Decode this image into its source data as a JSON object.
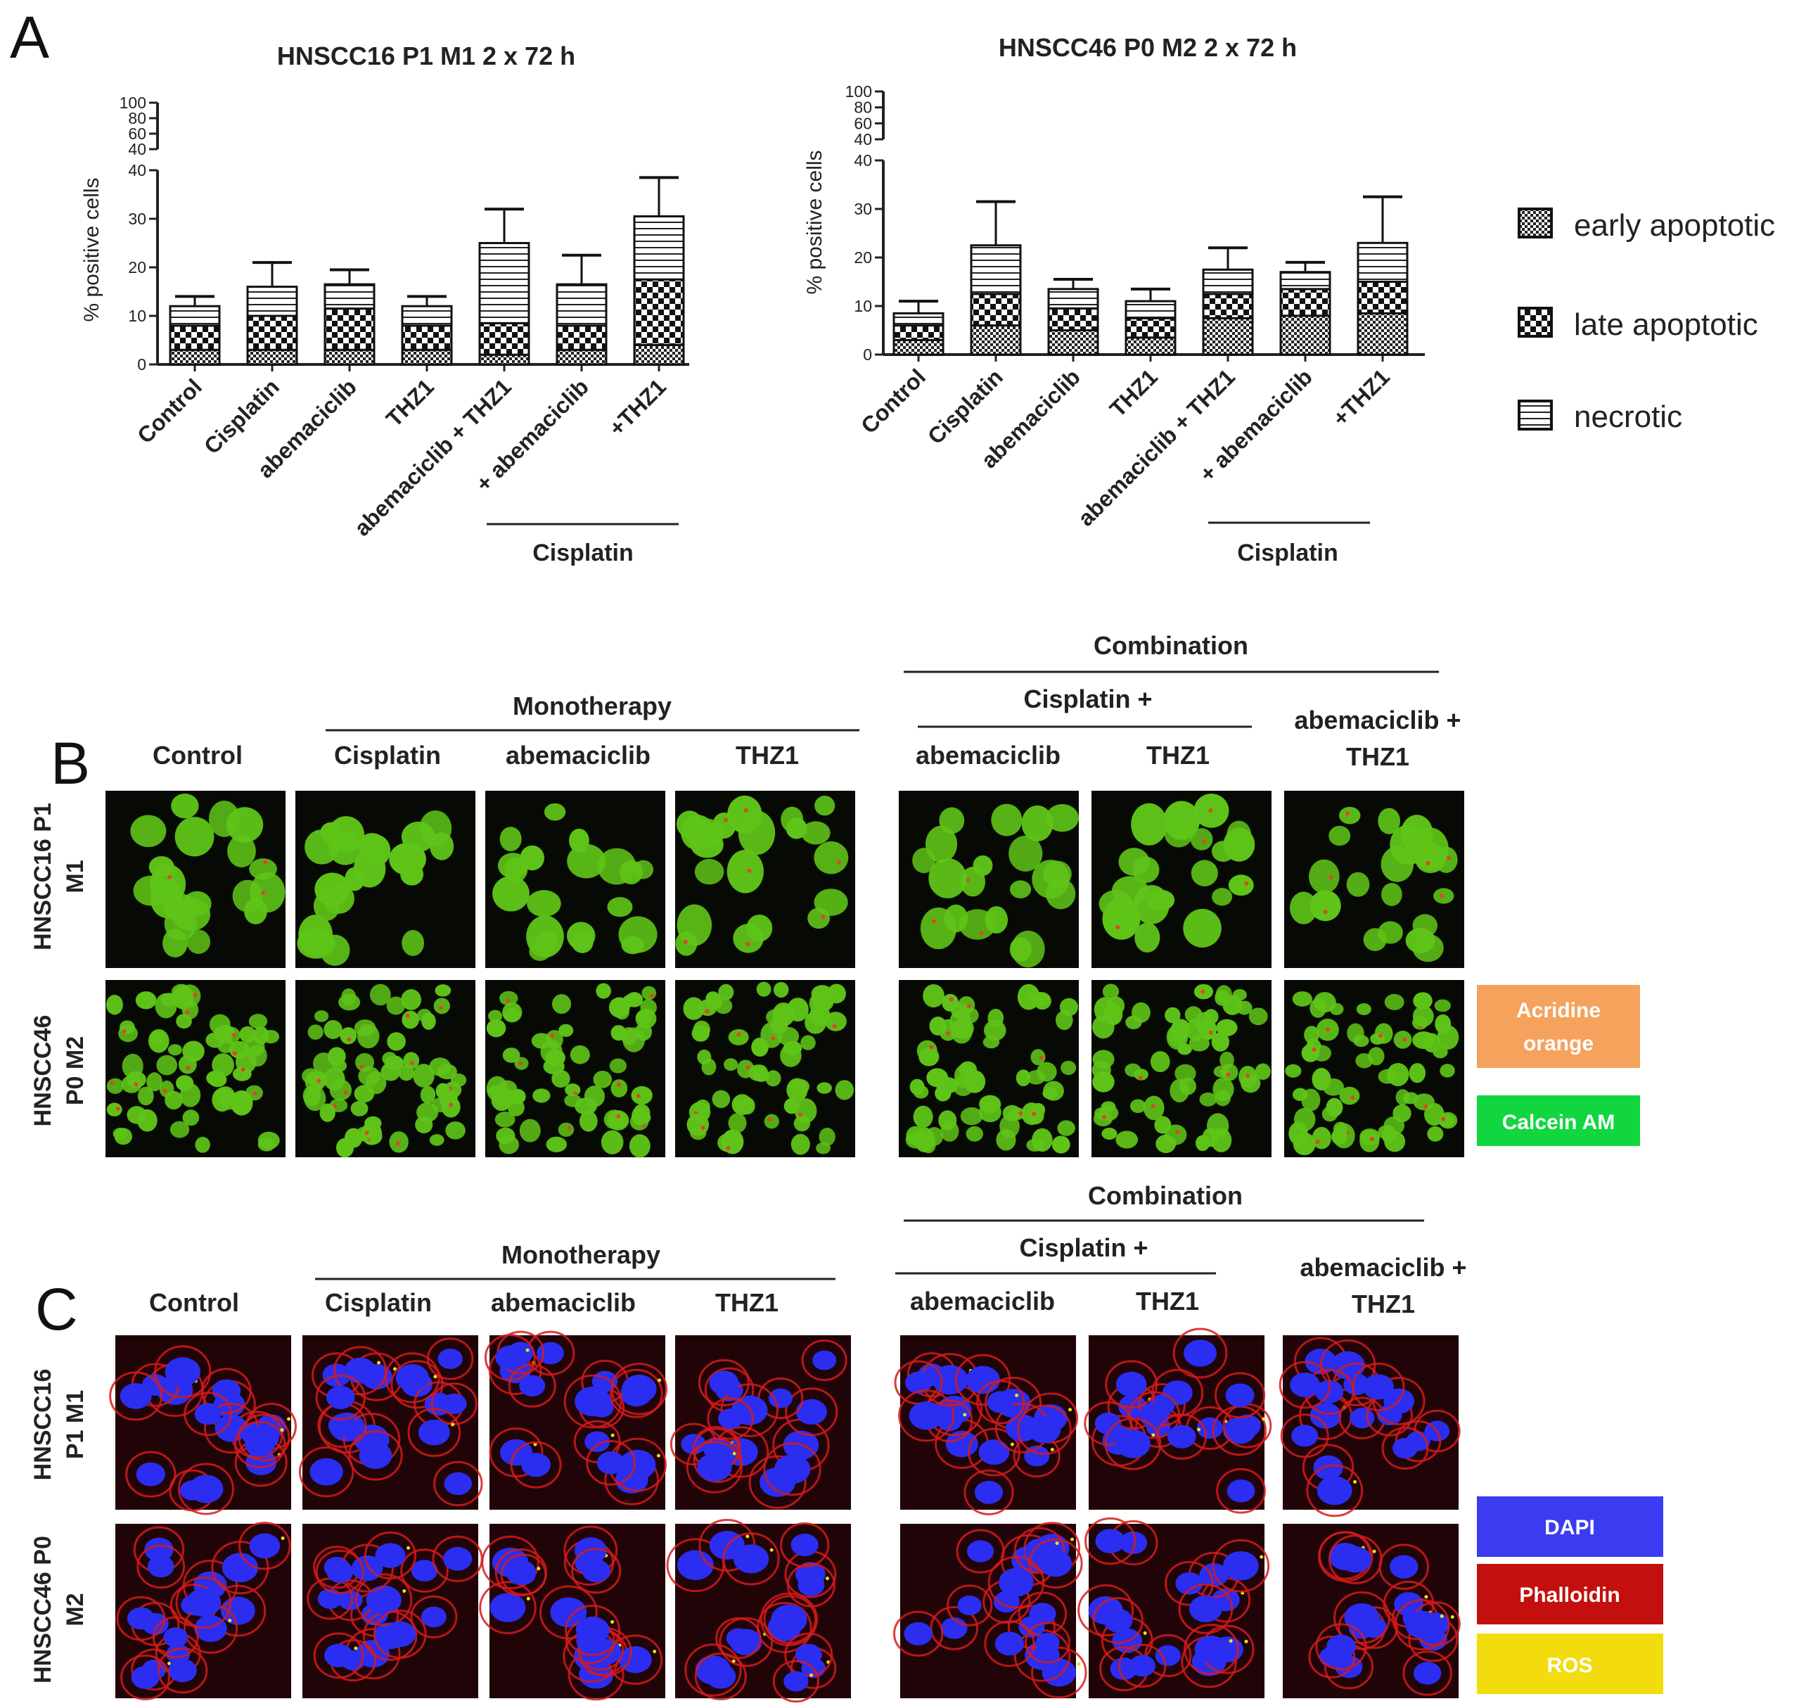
{
  "panel_labels": {
    "a": "A",
    "b": "B",
    "c": "C"
  },
  "chart_data": [
    {
      "type": "bar",
      "stacked": true,
      "title": "HNSCC16 P1 M1 2 x 72 h",
      "ylabel": "% positive cells",
      "categories": [
        "Control",
        "Cisplatin",
        "abemaciclib",
        "THZ1",
        "abemaciclib + THZ1",
        "+ abemaciclib",
        "+THZ1"
      ],
      "group_label": "Cisplatin",
      "group_categories": [
        "+ abemaciclib",
        "+THZ1"
      ],
      "y_break": {
        "lower": [
          0,
          40
        ],
        "upper": [
          40,
          100
        ]
      },
      "yticks_lower": [
        "0",
        "10",
        "20",
        "30",
        "40"
      ],
      "yticks_upper": [
        "40",
        "60",
        "80",
        "100"
      ],
      "series": [
        {
          "name": "early apoptotic",
          "values": [
            3,
            3,
            3,
            3,
            2,
            3,
            4
          ],
          "errors": [
            1,
            1,
            1,
            1,
            0.5,
            1,
            3
          ]
        },
        {
          "name": "late apoptotic",
          "values": [
            5,
            7,
            8.5,
            5,
            6.5,
            5,
            13.5
          ],
          "errors": [
            1,
            1.5,
            2,
            1.5,
            6,
            3.5,
            8
          ]
        },
        {
          "name": "necrotic",
          "values": [
            4,
            6,
            5,
            4,
            16.5,
            8.5,
            13
          ],
          "errors": [
            2,
            5,
            3,
            2,
            7,
            6,
            8
          ]
        }
      ]
    },
    {
      "type": "bar",
      "stacked": true,
      "title": "HNSCC46 P0 M2 2 x 72 h",
      "ylabel": "% positive cells",
      "categories": [
        "Control",
        "Cisplatin",
        "abemaciclib",
        "THZ1",
        "abemaciclib + THZ1",
        "+ abemaciclib",
        "+THZ1"
      ],
      "group_label": "Cisplatin",
      "group_categories": [
        "+ abemaciclib",
        "+THZ1"
      ],
      "y_break": {
        "lower": [
          0,
          40
        ],
        "upper": [
          40,
          100
        ]
      },
      "yticks_lower": [
        "0",
        "10",
        "20",
        "30",
        "40"
      ],
      "yticks_upper": [
        "40",
        "60",
        "80",
        "100"
      ],
      "series": [
        {
          "name": "early apoptotic",
          "values": [
            3,
            6,
            5,
            3.5,
            7.5,
            8,
            8.5
          ],
          "errors": [
            1,
            1,
            1,
            1,
            1,
            1,
            1
          ]
        },
        {
          "name": "late apoptotic",
          "values": [
            3,
            6.5,
            4.5,
            4,
            5,
            5.5,
            6.5
          ],
          "errors": [
            1,
            3,
            1,
            1.5,
            1,
            1,
            2
          ]
        },
        {
          "name": "necrotic",
          "values": [
            2.5,
            10,
            4,
            3.5,
            5,
            3.5,
            8
          ],
          "errors": [
            2.5,
            9,
            2,
            2.5,
            4.5,
            2,
            9.5
          ]
        }
      ]
    }
  ],
  "legend": [
    {
      "name": "early apoptotic",
      "pattern": "fine-check"
    },
    {
      "name": "late apoptotic",
      "pattern": "coarse-check"
    },
    {
      "name": "necrotic",
      "pattern": "horizontal-lines"
    }
  ],
  "panel_b": {
    "combination": "Combination",
    "monotherapy": "Monotherapy",
    "cisplatin_plus": "Cisplatin +",
    "columns": [
      "Control",
      "Cisplatin",
      "abemaciclib",
      "THZ1",
      "abemaciclib",
      "THZ1"
    ],
    "abema_thz1_line1": "abemaciclib +",
    "abema_thz1_line2": "THZ1",
    "row1_line1": "HNSCC16 P1",
    "row1_line2": "M1",
    "row2_line1": "HNSCC46",
    "row2_line2": "P0 M2",
    "stains": [
      {
        "label_line1": "Acridine",
        "label_line2": "orange",
        "color": "#f5a25d"
      },
      {
        "label_line1": "Calcein AM",
        "label_line2": "",
        "color": "#12d640"
      }
    ],
    "micrograph_colors": {
      "background": "#070a04",
      "cell": "#5fc418",
      "red_dot": "#e0452b"
    }
  },
  "panel_c": {
    "combination": "Combination",
    "monotherapy": "Monotherapy",
    "cisplatin_plus": "Cisplatin +",
    "columns": [
      "Control",
      "Cisplatin",
      "abemaciclib",
      "THZ1",
      "abemaciclib",
      "THZ1"
    ],
    "abema_thz1_line1": "abemaciclib +",
    "abema_thz1_line2": "THZ1",
    "row1_line1": "HNSCC16",
    "row1_line2": "P1 M1",
    "row2_line1": "HNSCC46 P0",
    "row2_line2": "M2",
    "stains": [
      {
        "label": "DAPI",
        "color": "#3b3bf2"
      },
      {
        "label": "Phalloidin",
        "color": "#c40f0f"
      },
      {
        "label": "ROS",
        "color": "#f2dc0d"
      }
    ],
    "micrograph_colors": {
      "background": "#200408",
      "membrane": "#d51a1a",
      "nucleus": "#2b2ef0",
      "ros": "#e8e21a"
    }
  }
}
